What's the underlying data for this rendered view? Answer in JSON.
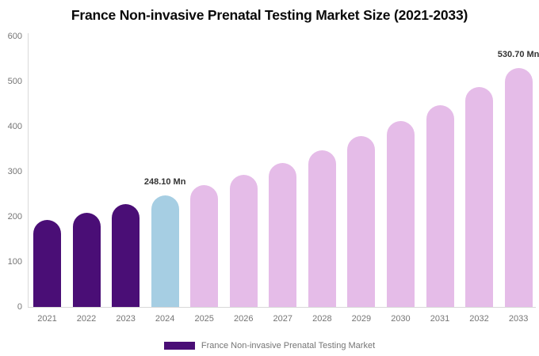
{
  "chart_data": {
    "type": "bar",
    "title": "France Non-invasive Prenatal Testing Market Size (2021-2033)",
    "unit": "Mn",
    "categories": [
      "2021",
      "2022",
      "2023",
      "2024",
      "2025",
      "2026",
      "2027",
      "2028",
      "2029",
      "2030",
      "2031",
      "2032",
      "2033"
    ],
    "values": [
      192.6,
      209.6,
      228.0,
      248.1,
      270.0,
      293.7,
      319.6,
      347.7,
      378.3,
      411.6,
      447.9,
      487.4,
      530.7
    ],
    "roles": [
      "historical",
      "historical",
      "historical",
      "base_year",
      "forecast",
      "forecast",
      "forecast",
      "forecast",
      "forecast",
      "forecast",
      "forecast",
      "forecast",
      "forecast"
    ],
    "data_labels": [
      {
        "category": "2024",
        "text": "248.10 Mn"
      },
      {
        "category": "2033",
        "text": "530.70 Mn"
      }
    ],
    "yticks": [
      0,
      100,
      200,
      300,
      400,
      500,
      600
    ],
    "ylim": [
      0,
      600
    ],
    "xlabel": "",
    "ylabel": "",
    "grid": false,
    "legend_position": "bottom"
  },
  "legend": {
    "label": "France Non-invasive Prenatal Testing Market"
  },
  "colors": {
    "historical": "#4A0E76",
    "base_year": "#A6CEE3",
    "forecast": "#E5BCE8",
    "axis_line": "#D9D9D9",
    "tick_text": "#757575",
    "data_label_text": "#333333",
    "title_text": "#0A0A0A",
    "background": "#FFFFFF"
  }
}
